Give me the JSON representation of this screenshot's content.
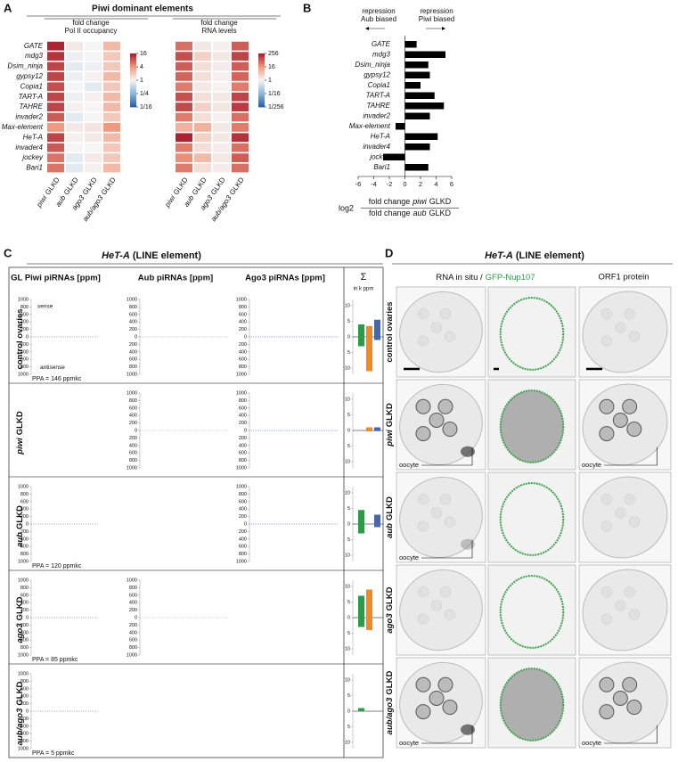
{
  "panel_a": {
    "label": "A",
    "title": "Piwi dominant elements",
    "rows": [
      "GATE",
      "mdg3",
      "Dsim_ninja",
      "gypsy12",
      "Copia1",
      "TART-A",
      "TAHRE",
      "invader2",
      "Max-element",
      "HeT-A",
      "invader4",
      "jockey",
      "Bari1"
    ],
    "columns": [
      {
        "italic": "piwi",
        "text": "GLKD"
      },
      {
        "italic": "aub",
        "text": "GLKD"
      },
      {
        "italic": "ago3",
        "text": "GLKD"
      },
      {
        "italic": "aub/ago3",
        "text": "GLKD"
      }
    ],
    "heatmaps": [
      {
        "header": [
          "fold change",
          "Pol II  occupancy"
        ],
        "lim": [
          0.0625,
          16
        ],
        "ticks": [
          16,
          4,
          1,
          {
            "value": 0.25,
            "label": "1/4"
          },
          {
            "value": 0.0625,
            "label": "1/16"
          }
        ],
        "values": [
          [
            14,
            1.2,
            1,
            2.5
          ],
          [
            12,
            0.9,
            1,
            2
          ],
          [
            10,
            0.8,
            0.9,
            2
          ],
          [
            10,
            0.9,
            1.1,
            2.5
          ],
          [
            9,
            1,
            0.8,
            2
          ],
          [
            10,
            0.9,
            1.1,
            2.5
          ],
          [
            10,
            1.1,
            1,
            2.5
          ],
          [
            8,
            0.8,
            1,
            2
          ],
          [
            4,
            1.2,
            1.3,
            4
          ],
          [
            10,
            1.1,
            1.2,
            2.5
          ],
          [
            8,
            1,
            1,
            2
          ],
          [
            6,
            0.8,
            1.2,
            2
          ],
          [
            6,
            0.8,
            1.1,
            2.5
          ]
        ]
      },
      {
        "header": [
          "fold change",
          "RNA levels"
        ],
        "lim": [
          0.00390625,
          256
        ],
        "ticks": [
          256,
          16,
          1,
          {
            "value": 0.0625,
            "label": "1/16"
          },
          {
            "value": 0.00390625,
            "label": "1/256"
          }
        ],
        "values": [
          [
            40,
            1.5,
            1.2,
            60
          ],
          [
            80,
            3,
            1.5,
            100
          ],
          [
            60,
            2,
            1.3,
            60
          ],
          [
            50,
            2,
            1.2,
            50
          ],
          [
            30,
            1.5,
            1.1,
            30
          ],
          [
            80,
            2,
            1.5,
            100
          ],
          [
            90,
            3,
            1.6,
            120
          ],
          [
            30,
            2,
            1.2,
            40
          ],
          [
            8,
            8,
            1.5,
            30
          ],
          [
            200,
            3,
            1.5,
            150
          ],
          [
            30,
            2,
            1.3,
            40
          ],
          [
            20,
            6,
            1.5,
            60
          ],
          [
            30,
            2,
            1.3,
            40
          ]
        ]
      }
    ]
  },
  "panel_b": {
    "label": "B",
    "left_note": [
      "repression",
      "Aub biased"
    ],
    "right_note": [
      "repression",
      "Piwi biased"
    ],
    "chart_data": {
      "type": "bar",
      "categories": [
        "GATE",
        "mdg3",
        "Dsim_ninja",
        "gypsy12",
        "Copia1",
        "TART-A",
        "TAHRE",
        "invader2",
        "Max-element",
        "HeT-A",
        "invader4",
        "jockey",
        "Bari1"
      ],
      "values": [
        1.5,
        5.2,
        3,
        3.2,
        2,
        3.8,
        5,
        3.2,
        -1.2,
        4.2,
        3.2,
        -2.8,
        3
      ],
      "color": "#000000",
      "xlim": [
        -6,
        6
      ],
      "xticks": [
        -6,
        -4,
        -2,
        0,
        2,
        4,
        6
      ]
    },
    "formula": {
      "log": "log2",
      "numerator": {
        "a": "fold change",
        "italic": "piwi",
        "b": "GLKD"
      },
      "denominator": {
        "a": "fold change",
        "italic": "aub",
        "b": "GLKD"
      }
    }
  },
  "panel_c": {
    "label": "C",
    "title": {
      "italic": "HeT-A",
      "text": "(LINE element)"
    },
    "columns": [
      {
        "name": "GL Piwi piRNAs [ppm]",
        "color": "#2e9a4a"
      },
      {
        "name": "Aub piRNAs [ppm]",
        "color": "#f08a24"
      },
      {
        "name": "Ago3 piRNAs [ppm]",
        "color": "#4a66a8"
      }
    ],
    "sum_header": "Σ",
    "sum_unit": "in k ppm",
    "sense": "sense",
    "antisense": "antisense",
    "ylim": [
      -1000,
      1000
    ],
    "yticks": [
      1000,
      800,
      600,
      400,
      200,
      0,
      {
        "value": -200,
        "label": "200"
      },
      {
        "value": -400,
        "label": "400"
      },
      {
        "value": -600,
        "label": "600"
      },
      {
        "value": -800,
        "label": "800"
      },
      {
        "value": -1000,
        "label": "1000"
      }
    ],
    "sum_lim": [
      -12,
      12
    ],
    "sum_ticks": [
      10,
      5,
      0,
      {
        "value": -5,
        "label": "5"
      },
      {
        "value": -10,
        "label": "10"
      }
    ],
    "rows": [
      {
        "label": {
          "text": "control ovaries"
        },
        "ppa": "PPA = 146 ppmkc",
        "sums": [
          {
            "sense": 4,
            "antisense": -3
          },
          {
            "sense": 3.5,
            "antisense": -11
          },
          {
            "sense": 5.5,
            "antisense": -1
          }
        ]
      },
      {
        "label": {
          "italic": "piwi",
          "text": "GLKD"
        },
        "sums": [
          null,
          {
            "sense": 1,
            "antisense": -0.3
          },
          {
            "sense": 1,
            "antisense": -0.2
          }
        ]
      },
      {
        "label": {
          "italic": "aub",
          "text": "GLKD"
        },
        "ppa": "PPA = 120 ppmkc",
        "sums": [
          {
            "sense": 4.5,
            "antisense": -3
          },
          null,
          {
            "sense": 3,
            "antisense": -1
          }
        ]
      },
      {
        "label": {
          "italic": "ago3",
          "text": "GLKD"
        },
        "ppa": "PPA = 85 ppmkc",
        "sums": [
          {
            "sense": 7,
            "antisense": -3
          },
          {
            "sense": 9,
            "antisense": -4
          },
          null
        ]
      },
      {
        "label": {
          "italic": "aub/ago3",
          "text": "GLKD"
        },
        "ppa": "PPA = 5 ppmkc",
        "sums": [
          {
            "sense": 1,
            "antisense": 0
          },
          null,
          null
        ]
      }
    ]
  },
  "panel_d": {
    "label": "D",
    "title": {
      "italic": "HeT-A",
      "text": "(LINE element)"
    },
    "col1": "RNA in situ /",
    "col1_green": "GFP-Nup107",
    "col2": "ORF1  protein",
    "rows": [
      {
        "label": {
          "text": "control ovaries"
        }
      },
      {
        "label": {
          "italic": "piwi",
          "text": "GLKD"
        },
        "oocyte": "oocyte"
      },
      {
        "label": {
          "italic": "aub",
          "text": "GLKD"
        },
        "oocyte": "oocyte"
      },
      {
        "label": {
          "italic": "ago3",
          "text": "GLKD"
        }
      },
      {
        "label": {
          "italic": "aub/ago3",
          "text": "GLKD"
        },
        "oocyte": "oocyte"
      }
    ]
  }
}
